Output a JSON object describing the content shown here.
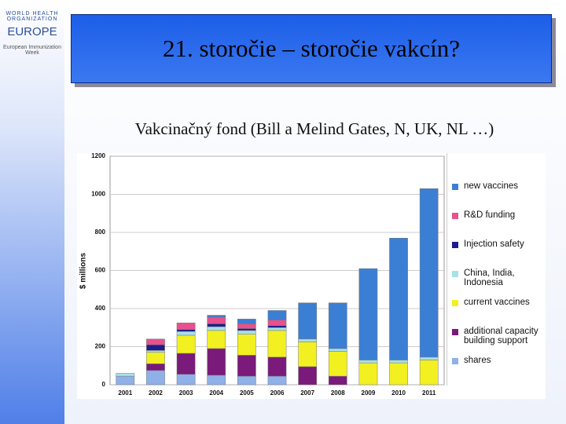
{
  "slide": {
    "title": "21. storočie – storočie vakcín?",
    "subtitle": "Vakcinačný fond (Bill a Melind Gates, N, UK, NL …)",
    "logo_org": "WORLD HEALTH ORGANIZATION",
    "logo_region": "EUROPE",
    "logo_week": "European Immunization Week"
  },
  "chart_data": {
    "type": "stacked-bar",
    "y_label": "$ millions",
    "categories": [
      "2001",
      "2002",
      "2003",
      "2004",
      "2005",
      "2006",
      "2007",
      "2008",
      "2009",
      "2010",
      "2011"
    ],
    "ylim": [
      0,
      1200
    ],
    "yticks": [
      0,
      200,
      400,
      600,
      800,
      1000,
      1200
    ],
    "grid": true,
    "series": [
      {
        "name": "shares",
        "color": "#8fb0e8",
        "values": [
          45,
          75,
          55,
          50,
          45,
          45,
          0,
          0,
          0,
          0,
          0
        ]
      },
      {
        "name": "additional capacity building support",
        "color": "#7a1a7a",
        "values": [
          0,
          35,
          110,
          140,
          110,
          100,
          95,
          45,
          0,
          0,
          0
        ]
      },
      {
        "name": "current vaccines",
        "color": "#f2f020",
        "values": [
          0,
          60,
          95,
          95,
          110,
          140,
          130,
          130,
          115,
          115,
          130
        ]
      },
      {
        "name": "China, India, Indonesia",
        "color": "#a8e0e8",
        "values": [
          15,
          10,
          20,
          20,
          20,
          15,
          15,
          15,
          15,
          15,
          15
        ]
      },
      {
        "name": "Injection safety",
        "color": "#1c1c8c",
        "values": [
          0,
          30,
          10,
          15,
          10,
          10,
          0,
          0,
          0,
          0,
          0
        ]
      },
      {
        "name": "R&D funding",
        "color": "#e8508e",
        "values": [
          0,
          30,
          35,
          35,
          25,
          30,
          0,
          0,
          0,
          0,
          0
        ]
      },
      {
        "name": "new vaccines",
        "color": "#3b7fd4",
        "values": [
          0,
          0,
          0,
          10,
          25,
          50,
          190,
          240,
          480,
          640,
          885
        ]
      }
    ]
  }
}
